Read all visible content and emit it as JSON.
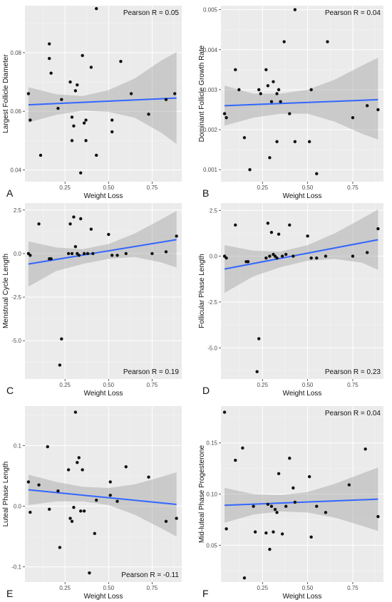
{
  "chart_data": [
    {
      "type": "scatter",
      "panel_letter": "A",
      "xlabel": "Weight Loss",
      "ylabel": "Largest Follicle Diameter",
      "annotation": "Pearson R = 0.05",
      "annotation_position": "top-right",
      "xlim": [
        0.02,
        0.92
      ],
      "ylim": [
        0.036,
        0.096
      ],
      "x_ticks": [
        0.25,
        0.5,
        0.75
      ],
      "x_tick_labels": [
        "0.25",
        "0.50",
        "0.75"
      ],
      "y_ticks": [
        0.04,
        0.06,
        0.08
      ],
      "y_tick_labels": [
        "0.04",
        "0.06",
        "0.08"
      ],
      "points": [
        [
          0.04,
          0.066
        ],
        [
          0.05,
          0.057
        ],
        [
          0.11,
          0.045
        ],
        [
          0.16,
          0.083
        ],
        [
          0.16,
          0.078
        ],
        [
          0.17,
          0.073
        ],
        [
          0.21,
          0.061
        ],
        [
          0.23,
          0.064
        ],
        [
          0.28,
          0.07
        ],
        [
          0.29,
          0.05
        ],
        [
          0.29,
          0.058
        ],
        [
          0.3,
          0.055
        ],
        [
          0.31,
          0.067
        ],
        [
          0.32,
          0.069
        ],
        [
          0.34,
          0.039
        ],
        [
          0.35,
          0.079
        ],
        [
          0.36,
          0.056
        ],
        [
          0.37,
          0.057
        ],
        [
          0.37,
          0.05
        ],
        [
          0.4,
          0.075
        ],
        [
          0.43,
          0.095
        ],
        [
          0.43,
          0.045
        ],
        [
          0.52,
          0.057
        ],
        [
          0.52,
          0.053
        ],
        [
          0.57,
          0.077
        ],
        [
          0.63,
          0.066
        ],
        [
          0.73,
          0.059
        ],
        [
          0.83,
          0.064
        ],
        [
          0.88,
          0.066
        ]
      ],
      "fit": {
        "start": [
          0.04,
          0.0622
        ],
        "end": [
          0.89,
          0.0645
        ]
      },
      "ci_upper": [
        [
          0.04,
          0.0682
        ],
        [
          0.2,
          0.0658
        ],
        [
          0.35,
          0.0652
        ],
        [
          0.5,
          0.0672
        ],
        [
          0.65,
          0.0712
        ],
        [
          0.8,
          0.0772
        ],
        [
          0.89,
          0.0802
        ]
      ],
      "ci_lower": [
        [
          0.04,
          0.0562
        ],
        [
          0.2,
          0.0588
        ],
        [
          0.35,
          0.0602
        ],
        [
          0.5,
          0.0598
        ],
        [
          0.65,
          0.0578
        ],
        [
          0.8,
          0.0528
        ],
        [
          0.89,
          0.0488
        ]
      ]
    },
    {
      "type": "scatter",
      "panel_letter": "B",
      "xlabel": "Weight Loss",
      "ylabel": "Dominant Follicle Growth Rate",
      "annotation": "Pearson R = 0.04",
      "annotation_position": "top-right",
      "xlim": [
        0.02,
        0.92
      ],
      "ylim": [
        0.0007,
        0.0051
      ],
      "x_ticks": [
        0.25,
        0.5,
        0.75
      ],
      "x_tick_labels": [
        "0.25",
        "0.50",
        "0.75"
      ],
      "y_ticks": [
        0.001,
        0.002,
        0.003,
        0.004,
        0.005
      ],
      "y_tick_labels": [
        "0.001",
        "0.002",
        "0.003",
        "0.004",
        "0.005"
      ],
      "points": [
        [
          0.04,
          0.0024
        ],
        [
          0.05,
          0.0023
        ],
        [
          0.1,
          0.0035
        ],
        [
          0.12,
          0.003
        ],
        [
          0.15,
          0.0018
        ],
        [
          0.18,
          0.001
        ],
        [
          0.23,
          0.003
        ],
        [
          0.24,
          0.0029
        ],
        [
          0.27,
          0.0035
        ],
        [
          0.28,
          0.0031
        ],
        [
          0.29,
          0.0013
        ],
        [
          0.3,
          0.0027
        ],
        [
          0.31,
          0.0032
        ],
        [
          0.33,
          0.0017
        ],
        [
          0.33,
          0.0029
        ],
        [
          0.34,
          0.003
        ],
        [
          0.35,
          0.0027
        ],
        [
          0.37,
          0.0042
        ],
        [
          0.4,
          0.0024
        ],
        [
          0.43,
          0.005
        ],
        [
          0.43,
          0.0017
        ],
        [
          0.51,
          0.0017
        ],
        [
          0.52,
          0.003
        ],
        [
          0.55,
          0.0009
        ],
        [
          0.61,
          0.0042
        ],
        [
          0.75,
          0.0023
        ],
        [
          0.83,
          0.0026
        ],
        [
          0.89,
          0.0025
        ]
      ],
      "fit": {
        "start": [
          0.04,
          0.0026
        ],
        "end": [
          0.89,
          0.00275
        ]
      },
      "ci_upper": [
        [
          0.04,
          0.0031
        ],
        [
          0.2,
          0.0029
        ],
        [
          0.35,
          0.0029
        ],
        [
          0.5,
          0.003
        ],
        [
          0.65,
          0.00325
        ],
        [
          0.8,
          0.0036
        ],
        [
          0.89,
          0.0038
        ]
      ],
      "ci_lower": [
        [
          0.04,
          0.0021
        ],
        [
          0.2,
          0.0023
        ],
        [
          0.35,
          0.0024
        ],
        [
          0.5,
          0.0024
        ],
        [
          0.65,
          0.0022
        ],
        [
          0.8,
          0.0019
        ],
        [
          0.89,
          0.00175
        ]
      ]
    },
    {
      "type": "scatter",
      "panel_letter": "C",
      "xlabel": "Weight Loss",
      "ylabel": "Menstrual Cycle Length",
      "annotation": "Pearson R = 0.19",
      "annotation_position": "bottom-right",
      "xlim": [
        0.02,
        0.92
      ],
      "ylim": [
        -7.2,
        2.9
      ],
      "x_ticks": [
        0.25,
        0.5,
        0.75
      ],
      "x_tick_labels": [
        "0.25",
        "0.50",
        "0.75"
      ],
      "y_ticks": [
        -5.0,
        -2.5,
        0.0,
        2.5
      ],
      "y_tick_labels": [
        "-5.0",
        "-2.5",
        "0.0",
        "2.5"
      ],
      "points": [
        [
          0.04,
          0.0
        ],
        [
          0.05,
          -0.1
        ],
        [
          0.1,
          1.7
        ],
        [
          0.16,
          -0.3
        ],
        [
          0.17,
          -0.3
        ],
        [
          0.22,
          -6.4
        ],
        [
          0.23,
          -4.9
        ],
        [
          0.27,
          0.0
        ],
        [
          0.28,
          1.7
        ],
        [
          0.29,
          0.0
        ],
        [
          0.3,
          2.1
        ],
        [
          0.31,
          0.4
        ],
        [
          0.32,
          0.0
        ],
        [
          0.33,
          -0.1
        ],
        [
          0.34,
          2.0
        ],
        [
          0.36,
          0.0
        ],
        [
          0.38,
          0.0
        ],
        [
          0.4,
          1.4
        ],
        [
          0.41,
          0.0
        ],
        [
          0.5,
          1.1
        ],
        [
          0.52,
          -0.1
        ],
        [
          0.55,
          -0.1
        ],
        [
          0.6,
          0.0
        ],
        [
          0.75,
          0.0
        ],
        [
          0.83,
          0.1
        ],
        [
          0.89,
          1.0
        ]
      ],
      "fit": {
        "start": [
          0.04,
          -0.6
        ],
        "end": [
          0.89,
          0.8
        ]
      },
      "ci_upper": [
        [
          0.04,
          0.7
        ],
        [
          0.2,
          0.35
        ],
        [
          0.35,
          0.25
        ],
        [
          0.5,
          0.55
        ],
        [
          0.65,
          1.15
        ],
        [
          0.8,
          1.95
        ],
        [
          0.89,
          2.45
        ]
      ],
      "ci_lower": [
        [
          0.04,
          -1.9
        ],
        [
          0.2,
          -1.0
        ],
        [
          0.35,
          -0.6
        ],
        [
          0.5,
          -0.3
        ],
        [
          0.65,
          -0.2
        ],
        [
          0.8,
          -0.5
        ],
        [
          0.89,
          -0.8
        ]
      ]
    },
    {
      "type": "scatter",
      "panel_letter": "D",
      "xlabel": "Weight Loss",
      "ylabel": "Follicular Phase Length",
      "annotation": "Pearson R = 0.23",
      "annotation_position": "bottom-right",
      "xlim": [
        0.02,
        0.92
      ],
      "ylim": [
        -6.7,
        2.9
      ],
      "x_ticks": [
        0.25,
        0.5,
        0.75
      ],
      "x_tick_labels": [
        "0.25",
        "0.50",
        "0.75"
      ],
      "y_ticks": [
        -5.0,
        -2.5,
        0.0,
        2.5
      ],
      "y_tick_labels": [
        "-5.0",
        "-2.5",
        "0.0",
        "2.5"
      ],
      "points": [
        [
          0.04,
          0.0
        ],
        [
          0.05,
          -0.1
        ],
        [
          0.1,
          1.7
        ],
        [
          0.16,
          -0.3
        ],
        [
          0.17,
          -0.3
        ],
        [
          0.22,
          -6.3
        ],
        [
          0.23,
          -4.5
        ],
        [
          0.27,
          -0.1
        ],
        [
          0.28,
          1.8
        ],
        [
          0.29,
          0.0
        ],
        [
          0.3,
          1.3
        ],
        [
          0.31,
          0.1
        ],
        [
          0.32,
          0.0
        ],
        [
          0.33,
          -0.1
        ],
        [
          0.34,
          1.2
        ],
        [
          0.36,
          0.0
        ],
        [
          0.38,
          0.1
        ],
        [
          0.4,
          1.7
        ],
        [
          0.42,
          0.0
        ],
        [
          0.5,
          1.1
        ],
        [
          0.52,
          -0.1
        ],
        [
          0.55,
          -0.1
        ],
        [
          0.6,
          0.0
        ],
        [
          0.75,
          0.0
        ],
        [
          0.83,
          0.2
        ],
        [
          0.89,
          1.5
        ]
      ],
      "fit": {
        "start": [
          0.04,
          -0.7
        ],
        "end": [
          0.89,
          0.9
        ]
      },
      "ci_upper": [
        [
          0.04,
          0.6
        ],
        [
          0.2,
          0.3
        ],
        [
          0.35,
          0.25
        ],
        [
          0.5,
          0.6
        ],
        [
          0.65,
          1.25
        ],
        [
          0.8,
          2.05
        ],
        [
          0.89,
          2.55
        ]
      ],
      "ci_lower": [
        [
          0.04,
          -2.0
        ],
        [
          0.2,
          -1.1
        ],
        [
          0.35,
          -0.6
        ],
        [
          0.5,
          -0.25
        ],
        [
          0.65,
          -0.15
        ],
        [
          0.8,
          -0.35
        ],
        [
          0.89,
          -0.75
        ]
      ]
    },
    {
      "type": "scatter",
      "panel_letter": "E",
      "xlabel": "Weight Loss",
      "ylabel": "Luteal Phase Length",
      "annotation": "Pearson R = -0.11",
      "annotation_position": "bottom-right",
      "xlim": [
        0.02,
        0.92
      ],
      "ylim": [
        -0.125,
        0.165
      ],
      "x_ticks": [
        0.25,
        0.5,
        0.75
      ],
      "x_tick_labels": [
        "0.25",
        "0.50",
        "0.75"
      ],
      "y_ticks": [
        -0.1,
        0.0,
        0.1
      ],
      "y_tick_labels": [
        "-0.1",
        "0.0",
        "0.1"
      ],
      "points": [
        [
          0.04,
          0.04
        ],
        [
          0.05,
          -0.01
        ],
        [
          0.1,
          0.035
        ],
        [
          0.15,
          0.098
        ],
        [
          0.16,
          -0.005
        ],
        [
          0.21,
          0.025
        ],
        [
          0.22,
          -0.068
        ],
        [
          0.27,
          0.06
        ],
        [
          0.28,
          -0.02
        ],
        [
          0.29,
          -0.025
        ],
        [
          0.3,
          -0.002
        ],
        [
          0.31,
          0.155
        ],
        [
          0.32,
          0.072
        ],
        [
          0.33,
          0.08
        ],
        [
          0.34,
          -0.008
        ],
        [
          0.35,
          0.06
        ],
        [
          0.36,
          -0.008
        ],
        [
          0.39,
          -0.11
        ],
        [
          0.42,
          -0.045
        ],
        [
          0.43,
          0.01
        ],
        [
          0.51,
          0.04
        ],
        [
          0.51,
          0.018
        ],
        [
          0.55,
          0.008
        ],
        [
          0.6,
          0.065
        ],
        [
          0.73,
          0.048
        ],
        [
          0.83,
          -0.025
        ],
        [
          0.89,
          -0.02
        ]
      ],
      "fit": {
        "start": [
          0.04,
          0.027
        ],
        "end": [
          0.89,
          0.003
        ]
      },
      "ci_upper": [
        [
          0.04,
          0.052
        ],
        [
          0.2,
          0.04
        ],
        [
          0.35,
          0.032
        ],
        [
          0.5,
          0.03
        ],
        [
          0.65,
          0.036
        ],
        [
          0.8,
          0.048
        ],
        [
          0.89,
          0.056
        ]
      ],
      "ci_lower": [
        [
          0.04,
          0.002
        ],
        [
          0.2,
          0.008
        ],
        [
          0.35,
          0.008
        ],
        [
          0.5,
          0.002
        ],
        [
          0.65,
          -0.014
        ],
        [
          0.8,
          -0.036
        ],
        [
          0.89,
          -0.05
        ]
      ]
    },
    {
      "type": "scatter",
      "panel_letter": "F",
      "xlabel": "Weight Loss",
      "ylabel": "Mid-luteal Phase Progesterone",
      "annotation": "Pearson R = 0.04",
      "annotation_position": "top-right",
      "xlim": [
        0.02,
        0.92
      ],
      "ylim": [
        0.014,
        0.186
      ],
      "x_ticks": [
        0.25,
        0.5,
        0.75
      ],
      "x_tick_labels": [
        "0.25",
        "0.50",
        "0.75"
      ],
      "y_ticks": [
        0.05,
        0.1,
        0.15
      ],
      "y_tick_labels": [
        "0.05",
        "0.10",
        "0.15"
      ],
      "points": [
        [
          0.04,
          0.18
        ],
        [
          0.05,
          0.066
        ],
        [
          0.1,
          0.133
        ],
        [
          0.14,
          0.145
        ],
        [
          0.15,
          0.018
        ],
        [
          0.2,
          0.088
        ],
        [
          0.21,
          0.063
        ],
        [
          0.27,
          0.062
        ],
        [
          0.28,
          0.09
        ],
        [
          0.29,
          0.046
        ],
        [
          0.3,
          0.088
        ],
        [
          0.31,
          0.063
        ],
        [
          0.32,
          0.085
        ],
        [
          0.33,
          0.082
        ],
        [
          0.34,
          0.12
        ],
        [
          0.36,
          0.061
        ],
        [
          0.38,
          0.088
        ],
        [
          0.4,
          0.135
        ],
        [
          0.42,
          0.106
        ],
        [
          0.43,
          0.092
        ],
        [
          0.51,
          0.117
        ],
        [
          0.52,
          0.058
        ],
        [
          0.55,
          0.088
        ],
        [
          0.6,
          0.082
        ],
        [
          0.73,
          0.109
        ],
        [
          0.82,
          0.144
        ],
        [
          0.89,
          0.078
        ]
      ],
      "fit": {
        "start": [
          0.04,
          0.089
        ],
        "end": [
          0.89,
          0.095
        ]
      },
      "ci_upper": [
        [
          0.04,
          0.106
        ],
        [
          0.2,
          0.1
        ],
        [
          0.35,
          0.099
        ],
        [
          0.5,
          0.102
        ],
        [
          0.65,
          0.11
        ],
        [
          0.8,
          0.12
        ],
        [
          0.89,
          0.126
        ]
      ],
      "ci_lower": [
        [
          0.04,
          0.072
        ],
        [
          0.2,
          0.08
        ],
        [
          0.35,
          0.083
        ],
        [
          0.5,
          0.082
        ],
        [
          0.65,
          0.077
        ],
        [
          0.8,
          0.069
        ],
        [
          0.89,
          0.064
        ]
      ]
    }
  ]
}
